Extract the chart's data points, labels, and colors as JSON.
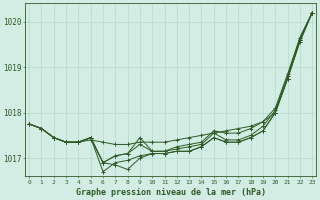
{
  "background_color": "#d4ede4",
  "grid_color": "#b8d9cc",
  "line_color": "#2d5a27",
  "title": "Graphe pression niveau de la mer (hPa)",
  "ylabel_range": [
    1016.6,
    1020.4
  ],
  "yticks": [
    1017,
    1018,
    1019,
    1020
  ],
  "xtick_labels": [
    "0",
    "1",
    "2",
    "3",
    "4",
    "5",
    "6",
    "7",
    "8",
    "9",
    "10",
    "11",
    "12",
    "13",
    "14",
    "15",
    "16",
    "17",
    "18",
    "19",
    "20",
    "21",
    "22",
    "23"
  ],
  "lines": [
    [
      1017.75,
      1017.65,
      1017.45,
      1017.35,
      1017.35,
      1017.4,
      1017.35,
      1017.3,
      1017.3,
      1017.35,
      1017.35,
      1017.35,
      1017.4,
      1017.45,
      1017.5,
      1017.55,
      1017.6,
      1017.65,
      1017.7,
      1017.8,
      1018.0,
      1018.75,
      1019.55,
      1020.2
    ],
    [
      1017.75,
      1017.65,
      1017.45,
      1017.35,
      1017.35,
      1017.45,
      1016.9,
      1016.85,
      1016.75,
      1017.0,
      1017.1,
      1017.1,
      1017.15,
      1017.15,
      1017.25,
      1017.45,
      1017.35,
      1017.35,
      1017.45,
      1017.6,
      1018.0,
      1018.75,
      1019.6,
      1020.2
    ],
    [
      1017.75,
      1017.65,
      1017.45,
      1017.35,
      1017.35,
      1017.45,
      1016.7,
      1016.9,
      1016.95,
      1017.05,
      1017.1,
      1017.1,
      1017.15,
      1017.15,
      1017.25,
      1017.45,
      1017.35,
      1017.35,
      1017.45,
      1017.6,
      1018.0,
      1018.75,
      1019.6,
      1020.2
    ],
    [
      1017.75,
      1017.65,
      1017.45,
      1017.35,
      1017.35,
      1017.45,
      1016.9,
      1017.05,
      1017.1,
      1017.3,
      1017.15,
      1017.15,
      1017.2,
      1017.25,
      1017.3,
      1017.55,
      1017.4,
      1017.4,
      1017.5,
      1017.7,
      1018.05,
      1018.8,
      1019.65,
      1020.2
    ],
    [
      1017.75,
      1017.65,
      1017.45,
      1017.35,
      1017.35,
      1017.45,
      1016.9,
      1017.05,
      1017.1,
      1017.45,
      1017.15,
      1017.15,
      1017.25,
      1017.3,
      1017.35,
      1017.6,
      1017.55,
      1017.55,
      1017.65,
      1017.8,
      1018.1,
      1018.85,
      1019.65,
      1020.2
    ]
  ]
}
